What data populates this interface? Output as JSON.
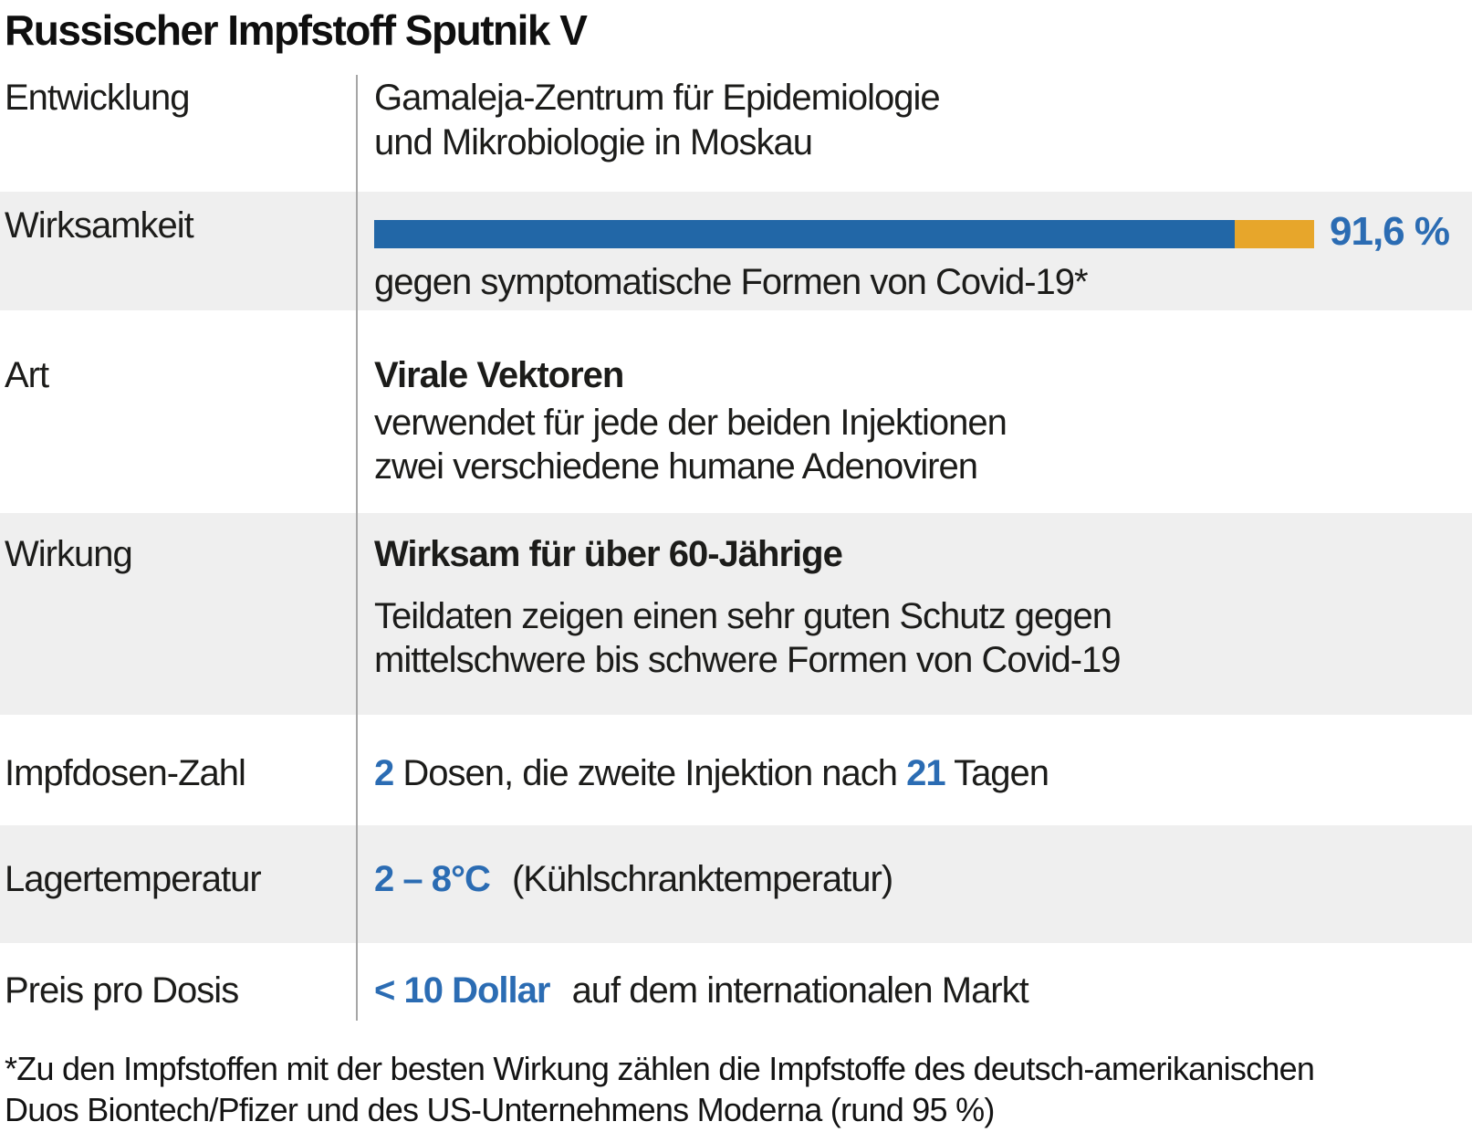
{
  "title": "Russischer Impfstoff Sputnik V",
  "colors": {
    "bar_blue": "#2267a7",
    "bar_orange": "#e7a62b",
    "value_blue": "#2b6cb3",
    "band_gray": "#efefef"
  },
  "chart_data": {
    "type": "bar",
    "categories": [
      "Wirksamkeit"
    ],
    "values": [
      91.6
    ],
    "value_labels": [
      "91,6 %"
    ],
    "title": "Russischer Impfstoff Sputnik V",
    "xlabel": "",
    "ylabel": "Wirksamkeit",
    "xlim": [
      0,
      100
    ],
    "annotation": "gegen symptomatische Formen von Covid-19*",
    "legend_position": "none",
    "grid": false
  },
  "rows": {
    "entwicklung": {
      "label": "Entwicklung",
      "lines": [
        "Gamaleja-Zentrum für Epidemiologie",
        "und Mikrobiologie in Moskau"
      ]
    },
    "wirksamkeit": {
      "label": "Wirksamkeit",
      "percent": 91.6,
      "value_label": "91,6 %",
      "caption": "gegen symptomatische Formen von Covid-19*"
    },
    "art": {
      "label": "Art",
      "headline": "Virale Vektoren",
      "lines": [
        "verwendet für jede der beiden Injektionen",
        "zwei verschiedene humane Adenoviren"
      ]
    },
    "wirkung": {
      "label": "Wirkung",
      "headline": "Wirksam für über 60-Jährige",
      "lines": [
        "Teildaten zeigen einen sehr guten Schutz gegen",
        "mittelschwere bis schwere Formen von Covid-19"
      ]
    },
    "impfdosen": {
      "label": "Impfdosen-Zahl",
      "value1": "2",
      "text1": "Dosen, die zweite Injektion nach",
      "value2": "21",
      "text2": "Tagen"
    },
    "lagertemperatur": {
      "label": "Lagertemperatur",
      "value": "2 – 8°C",
      "text": "(Kühlschranktemperatur)"
    },
    "preis": {
      "label": "Preis pro Dosis",
      "value": "< 10 Dollar",
      "text": "auf dem internationalen Markt"
    }
  },
  "footnote": {
    "line1": "*Zu den Impfstoffen mit der besten Wirkung zählen die Impfstoffe des deutsch-amerikanischen",
    "line2": "Duos Biontech/Pfizer und des US-Unternehmens Moderna (rund 95 %)"
  }
}
